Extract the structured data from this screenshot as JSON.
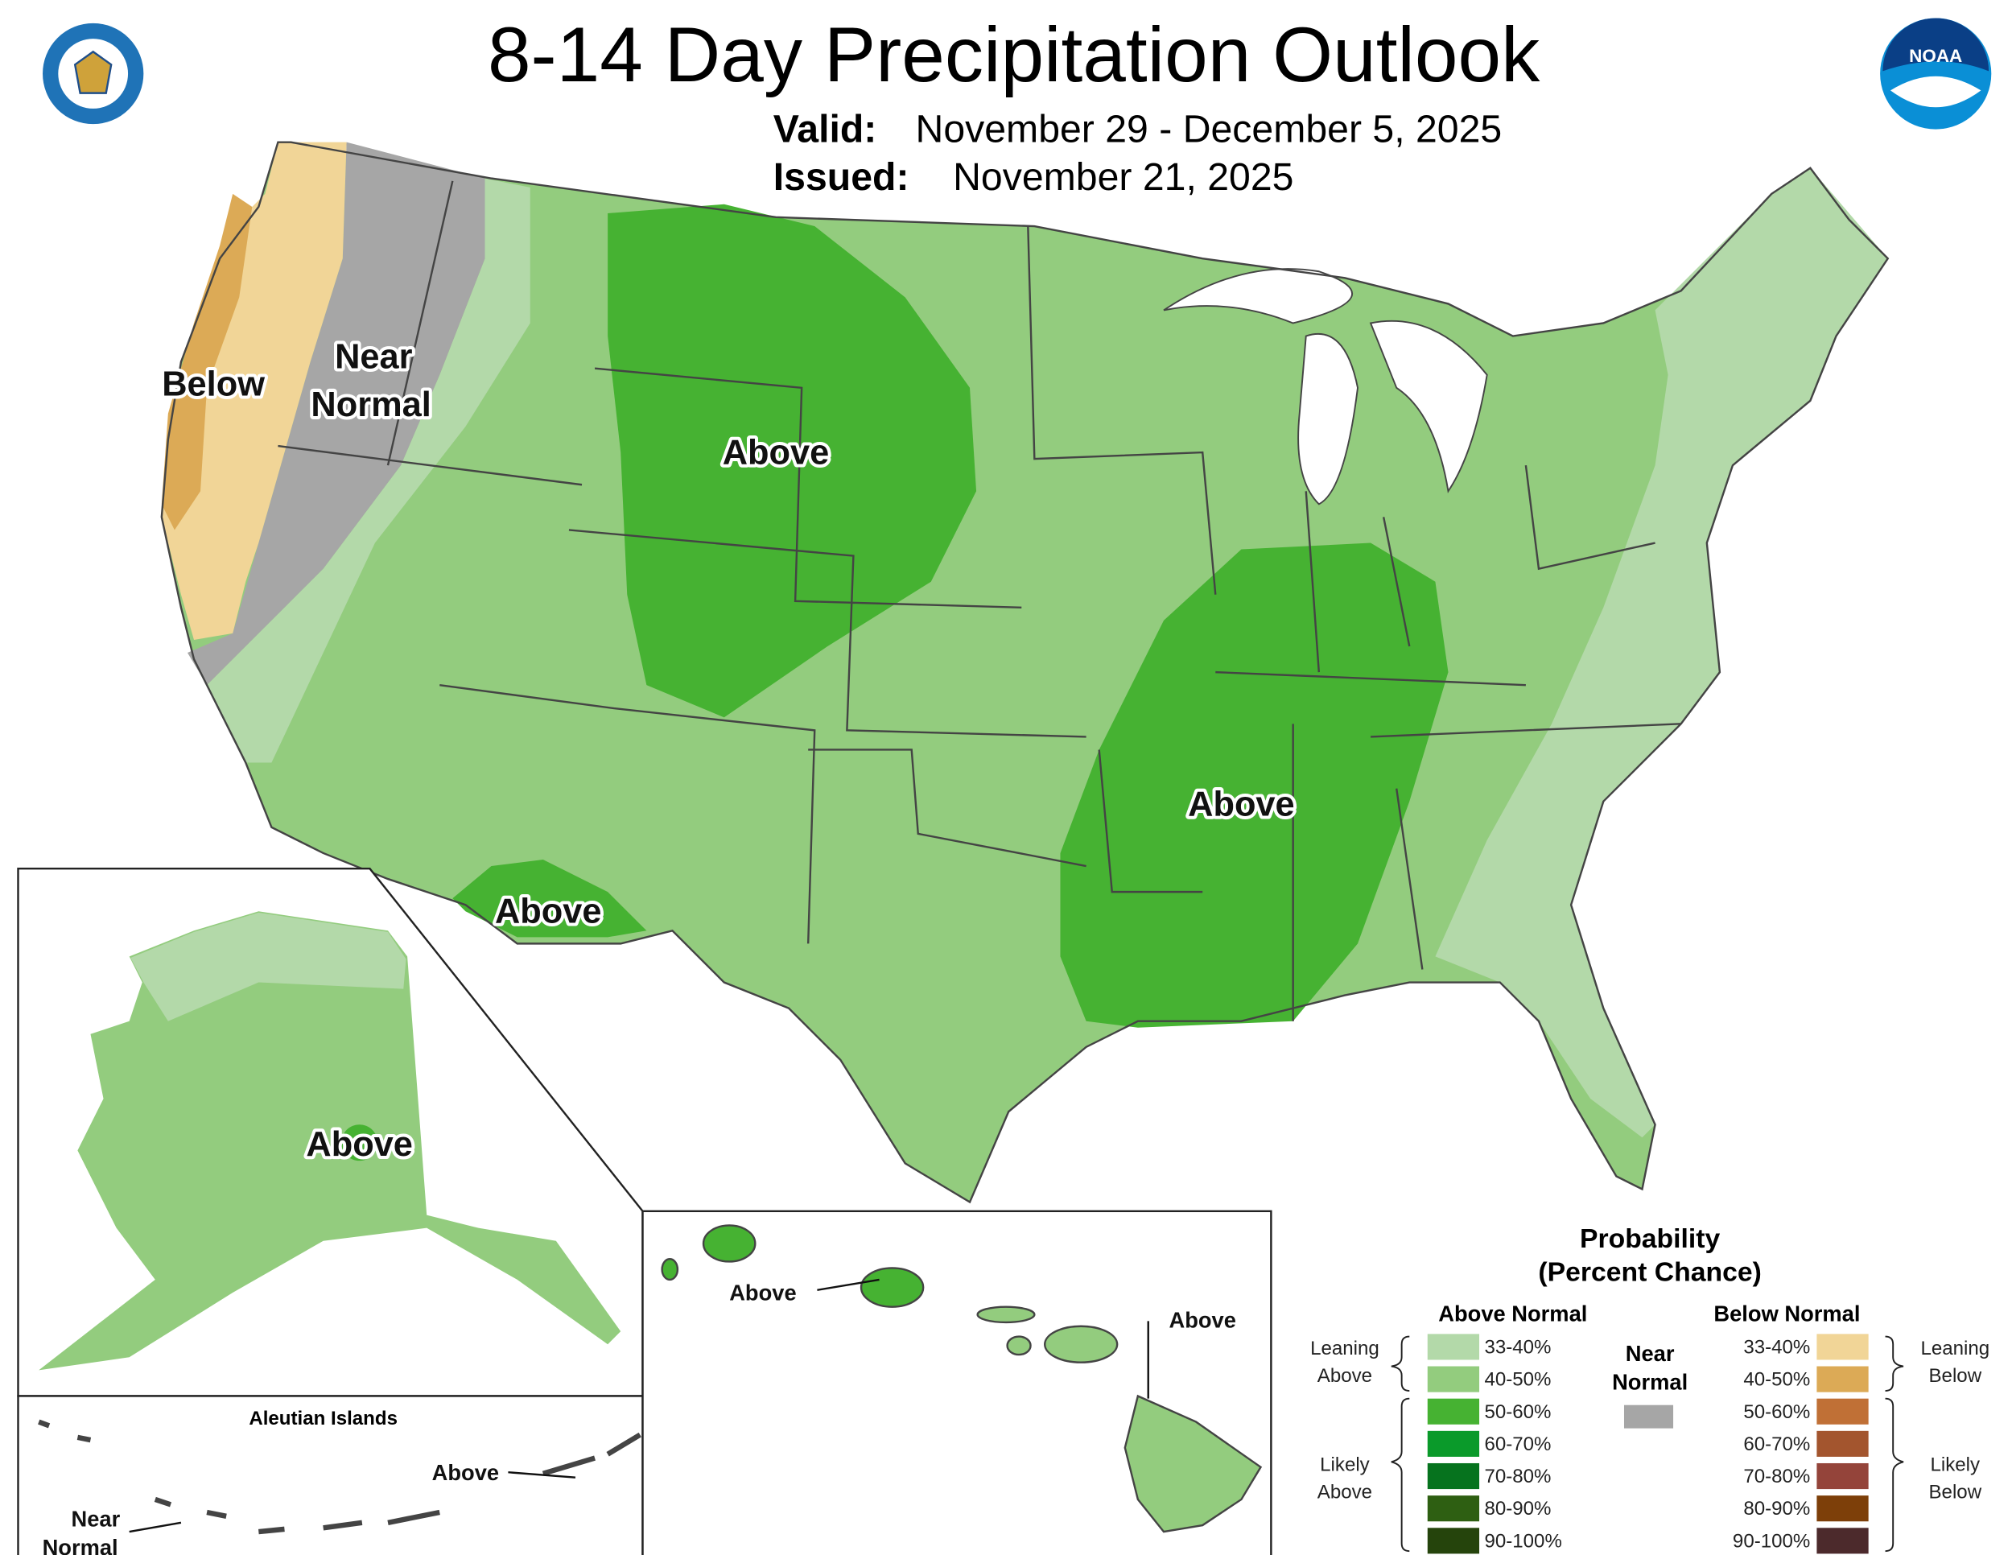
{
  "header": {
    "title": "8-14 Day Precipitation Outlook",
    "valid_label": "Valid:",
    "valid": "November 29 - December 5, 2025",
    "issued_label": "Issued:",
    "issued": "November 21, 2025"
  },
  "logos": {
    "noaa": "NOAA"
  },
  "conus": {
    "below": "Below",
    "near": [
      "Near",
      "Normal"
    ],
    "above": [
      "Above",
      "Above",
      "Above"
    ]
  },
  "alaska": {
    "above": "Above"
  },
  "aleutians": {
    "title": "Aleutian Islands",
    "above": "Above",
    "near": [
      "Near",
      "Normal"
    ]
  },
  "hawaii": {
    "above": [
      "Above",
      "Above"
    ]
  },
  "legend": {
    "title": "Probability",
    "subtitle": "(Percent Chance)",
    "above_header": "Above Normal",
    "below_header": "Below Normal",
    "near": [
      "Near",
      "Normal"
    ],
    "near_color": "#a6a6a6",
    "leaning_above": [
      "Leaning",
      "Above"
    ],
    "likely_above": [
      "Likely",
      "Above"
    ],
    "leaning_below": [
      "Leaning",
      "Below"
    ],
    "likely_below": [
      "Likely",
      "Below"
    ],
    "above_items": [
      {
        "label": "33-40%",
        "color": "#b3d9a9"
      },
      {
        "label": "40-50%",
        "color": "#93cc7e"
      },
      {
        "label": "50-60%",
        "color": "#46b232"
      },
      {
        "label": "60-70%",
        "color": "#0a9a2a"
      },
      {
        "label": "70-80%",
        "color": "#06731e"
      },
      {
        "label": "80-90%",
        "color": "#2e5f12"
      },
      {
        "label": "90-100%",
        "color": "#25440c"
      }
    ],
    "below_items": [
      {
        "label": "33-40%",
        "color": "#f1d597"
      },
      {
        "label": "40-50%",
        "color": "#dcaa56"
      },
      {
        "label": "50-60%",
        "color": "#c07036"
      },
      {
        "label": "60-70%",
        "color": "#a3552e"
      },
      {
        "label": "70-80%",
        "color": "#94443a"
      },
      {
        "label": "80-90%",
        "color": "#7d3f09"
      },
      {
        "label": "90-100%",
        "color": "#4c2a2c"
      }
    ]
  }
}
